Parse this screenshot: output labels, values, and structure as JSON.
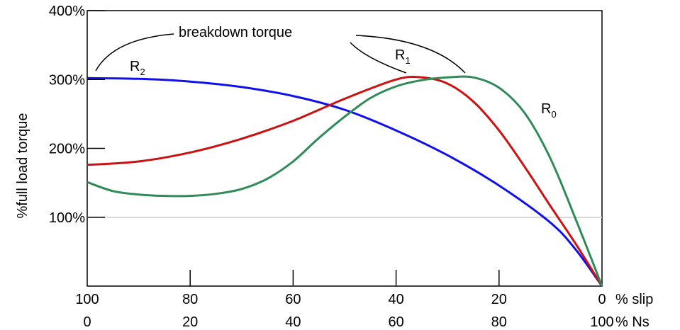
{
  "chart_data": {
    "type": "line",
    "ylabel": "%full load torque",
    "y_ticks": [
      {
        "value": 100,
        "label": "100%"
      },
      {
        "value": 200,
        "label": "200%"
      },
      {
        "value": 300,
        "label": "300%"
      },
      {
        "value": 400,
        "label": "400%"
      }
    ],
    "ylim": [
      0,
      400
    ],
    "slip_ticks": [
      "100",
      "80",
      "60",
      "40",
      "20",
      "0"
    ],
    "ns_ticks": [
      "0",
      "20",
      "40",
      "60",
      "80",
      "100"
    ],
    "slip_unit": "% slip",
    "ns_unit": "% Ns",
    "xlim": [
      100,
      0
    ],
    "annotation": "breakdown torque",
    "series": [
      {
        "name": "R2",
        "base": "R",
        "subscript": "2",
        "color": "#1010ee",
        "points": [
          [
            100,
            302
          ],
          [
            90,
            301
          ],
          [
            80,
            297
          ],
          [
            70,
            289
          ],
          [
            60,
            276
          ],
          [
            50,
            256
          ],
          [
            40,
            226
          ],
          [
            30,
            190
          ],
          [
            20,
            146
          ],
          [
            10,
            92
          ],
          [
            5,
            52
          ],
          [
            0,
            0
          ]
        ]
      },
      {
        "name": "R1",
        "base": "R",
        "subscript": "1",
        "color": "#cc1111",
        "points": [
          [
            100,
            176
          ],
          [
            90,
            181
          ],
          [
            80,
            194
          ],
          [
            70,
            214
          ],
          [
            60,
            240
          ],
          [
            50,
            272
          ],
          [
            40,
            300
          ],
          [
            35,
            303
          ],
          [
            30,
            294
          ],
          [
            25,
            268
          ],
          [
            20,
            226
          ],
          [
            15,
            173
          ],
          [
            10,
            116
          ],
          [
            5,
            60
          ],
          [
            0,
            0
          ]
        ]
      },
      {
        "name": "R0",
        "base": "R",
        "subscript": "0",
        "color": "#2e8b57",
        "points": [
          [
            100,
            151
          ],
          [
            95,
            138
          ],
          [
            90,
            133
          ],
          [
            85,
            131
          ],
          [
            80,
            131
          ],
          [
            75,
            134
          ],
          [
            70,
            141
          ],
          [
            65,
            156
          ],
          [
            60,
            181
          ],
          [
            55,
            215
          ],
          [
            50,
            246
          ],
          [
            45,
            273
          ],
          [
            40,
            290
          ],
          [
            35,
            299
          ],
          [
            30,
            303
          ],
          [
            25,
            303
          ],
          [
            20,
            288
          ],
          [
            15,
            251
          ],
          [
            10,
            185
          ],
          [
            5,
            95
          ],
          [
            0,
            0
          ]
        ]
      }
    ]
  }
}
